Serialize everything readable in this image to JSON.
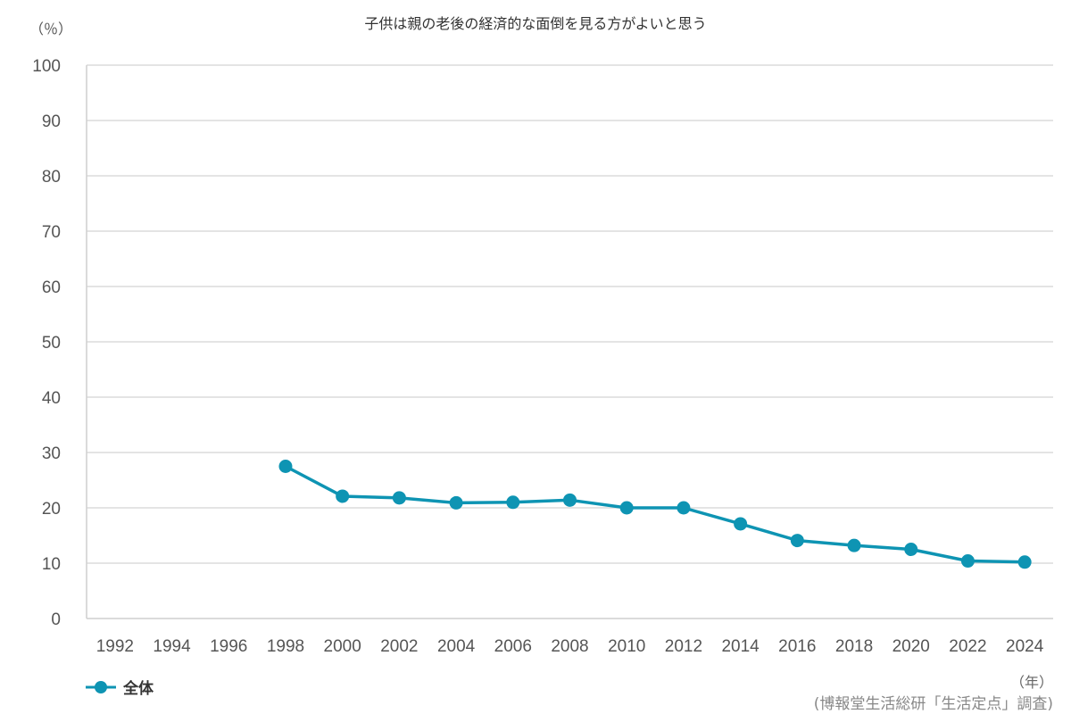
{
  "chart_data": {
    "type": "line",
    "title": "子供は親の老後の経済的な面倒を見る方がよいと思う",
    "ylabel": "（％）",
    "xlabel": "（年）",
    "ylim": [
      0,
      100
    ],
    "yticks": [
      0,
      10,
      20,
      30,
      40,
      50,
      60,
      70,
      80,
      90,
      100
    ],
    "grid": true,
    "categories": [
      "1992",
      "1994",
      "1996",
      "1998",
      "2000",
      "2002",
      "2004",
      "2006",
      "2008",
      "2010",
      "2012",
      "2014",
      "2016",
      "2018",
      "2020",
      "2022",
      "2024"
    ],
    "series": [
      {
        "name": "全体",
        "color": "#0e94b3",
        "values": [
          null,
          null,
          null,
          27.5,
          22.1,
          21.8,
          20.9,
          21.0,
          21.4,
          20.0,
          20.0,
          17.1,
          14.1,
          13.2,
          12.5,
          10.4,
          10.2
        ]
      }
    ],
    "legend_position": "bottom-left",
    "source": "(博報堂生活総研「生活定点」調査)"
  }
}
